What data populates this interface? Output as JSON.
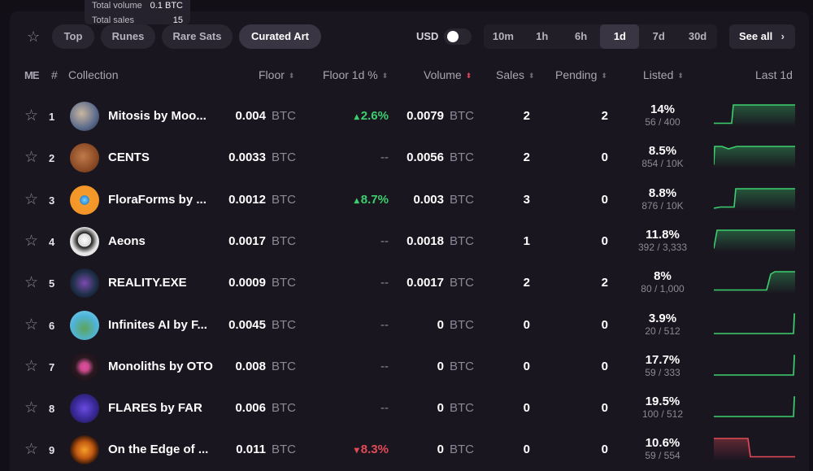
{
  "tooltip": {
    "row1_label": "Total volume",
    "row1_value": "0.1 BTC",
    "row2_label": "Total sales",
    "row2_value": "15"
  },
  "filters": {
    "tabs": [
      "Top",
      "Runes",
      "Rare Sats",
      "Curated Art"
    ],
    "active_tab": "Curated Art",
    "currency_label": "USD",
    "timeframes": [
      "10m",
      "1h",
      "6h",
      "1d",
      "7d",
      "30d"
    ],
    "active_timeframe": "1d",
    "see_all": "See all"
  },
  "table": {
    "logo": "ME",
    "headers": {
      "rank": "#",
      "collection": "Collection",
      "floor": "Floor",
      "floor_change": "Floor 1d %",
      "volume": "Volume",
      "sales": "Sales",
      "pending": "Pending",
      "listed": "Listed",
      "last": "Last 1d"
    },
    "rows": [
      {
        "rank": "1",
        "name": "Mitosis by Moo...",
        "floor": "0.004",
        "unit": "BTC",
        "change": "2.6%",
        "dir": "up",
        "volume": "0.0079",
        "sales": "2",
        "pending": "2",
        "listed_pct": "14%",
        "listed_count": "56 / 400",
        "spark_color": "#3ccf6e"
      },
      {
        "rank": "2",
        "name": "CENTS",
        "floor": "0.0033",
        "unit": "BTC",
        "change": "--",
        "dir": "none",
        "volume": "0.0056",
        "sales": "2",
        "pending": "0",
        "listed_pct": "8.5%",
        "listed_count": "854 / 10K",
        "spark_color": "#3ccf6e"
      },
      {
        "rank": "3",
        "name": "FloraForms by ...",
        "floor": "0.0012",
        "unit": "BTC",
        "change": "8.7%",
        "dir": "up",
        "volume": "0.003",
        "sales": "3",
        "pending": "0",
        "listed_pct": "8.8%",
        "listed_count": "876 / 10K",
        "spark_color": "#3ccf6e"
      },
      {
        "rank": "4",
        "name": "Aeons",
        "floor": "0.0017",
        "unit": "BTC",
        "change": "--",
        "dir": "none",
        "volume": "0.0018",
        "sales": "1",
        "pending": "0",
        "listed_pct": "11.8%",
        "listed_count": "392 / 3,333",
        "spark_color": "#3ccf6e"
      },
      {
        "rank": "5",
        "name": "REALITY.EXE",
        "floor": "0.0009",
        "unit": "BTC",
        "change": "--",
        "dir": "none",
        "volume": "0.0017",
        "sales": "2",
        "pending": "2",
        "listed_pct": "8%",
        "listed_count": "80 / 1,000",
        "spark_color": "#3ccf6e"
      },
      {
        "rank": "6",
        "name": "Infinites AI by F...",
        "floor": "0.0045",
        "unit": "BTC",
        "change": "--",
        "dir": "none",
        "volume": "0",
        "sales": "0",
        "pending": "0",
        "listed_pct": "3.9%",
        "listed_count": "20 / 512",
        "spark_color": "#3ccf6e"
      },
      {
        "rank": "7",
        "name": "Monoliths by OTO",
        "floor": "0.008",
        "unit": "BTC",
        "change": "--",
        "dir": "none",
        "volume": "0",
        "sales": "0",
        "pending": "0",
        "listed_pct": "17.7%",
        "listed_count": "59 / 333",
        "spark_color": "#3ccf6e"
      },
      {
        "rank": "8",
        "name": "FLARES by FAR",
        "floor": "0.006",
        "unit": "BTC",
        "change": "--",
        "dir": "none",
        "volume": "0",
        "sales": "0",
        "pending": "0",
        "listed_pct": "19.5%",
        "listed_count": "100 / 512",
        "spark_color": "#3ccf6e"
      },
      {
        "rank": "9",
        "name": "On the Edge of ...",
        "floor": "0.011",
        "unit": "BTC",
        "change": "8.3%",
        "dir": "down",
        "volume": "0",
        "sales": "0",
        "pending": "0",
        "listed_pct": "10.6%",
        "listed_count": "59 / 554",
        "spark_color": "#e34a57"
      }
    ]
  }
}
